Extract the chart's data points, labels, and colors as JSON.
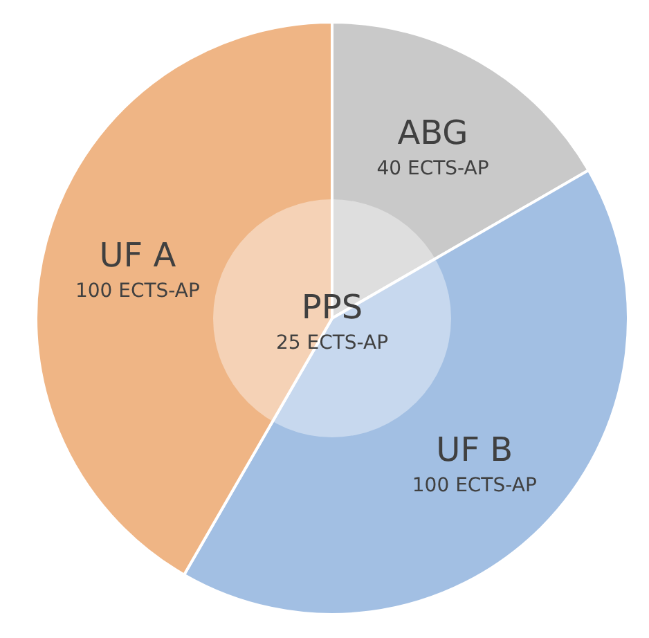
{
  "chart_data": [
    {
      "type": "pie",
      "categories": [
        "ABG",
        "UF B",
        "UF A"
      ],
      "values": [
        40,
        100,
        100
      ],
      "value_labels": [
        "40 ECTS-AP",
        "100 ECTS-AP",
        "100 ECTS-AP"
      ],
      "colors": [
        "#c9c9c9",
        "#a2bfe3",
        "#efb585"
      ]
    },
    {
      "type": "pie",
      "categories": [
        "PPS"
      ],
      "values": [
        25
      ],
      "value_labels": [
        "25 ECTS-AP"
      ],
      "colors": [
        "#ffffff"
      ]
    }
  ]
}
